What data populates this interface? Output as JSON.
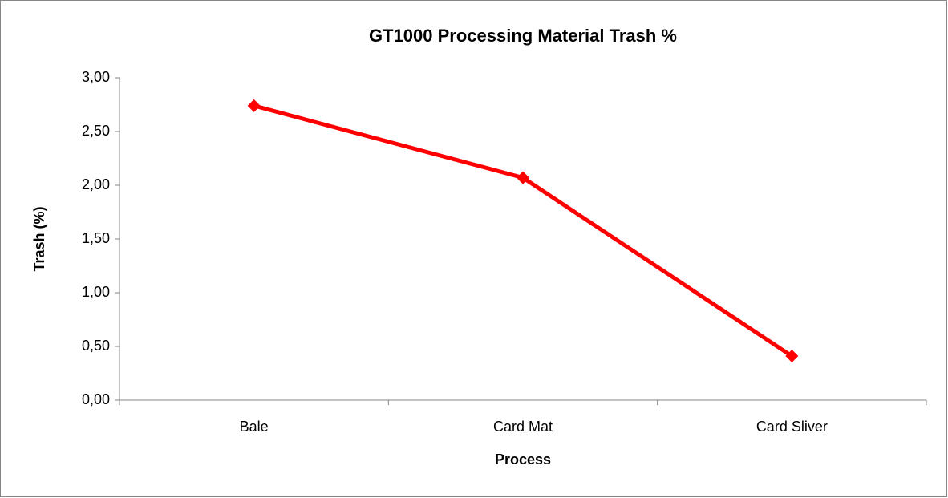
{
  "chart_data": {
    "type": "line",
    "title": "GT1000 Processing Material Trash %",
    "xlabel": "Process",
    "ylabel": "Trash (%)",
    "categories": [
      "Bale",
      "Card Mat",
      "Card Sliver"
    ],
    "series": [
      {
        "name": "Trash",
        "color": "#ff0000",
        "values": [
          2.74,
          2.07,
          0.41
        ]
      }
    ],
    "ylim": [
      0,
      3
    ],
    "yticks": [
      {
        "value": 0,
        "label": "0,00"
      },
      {
        "value": 0.5,
        "label": "0,50"
      },
      {
        "value": 1,
        "label": "1,00"
      },
      {
        "value": 1.5,
        "label": "1,50"
      },
      {
        "value": 2,
        "label": "2,00"
      },
      {
        "value": 2.5,
        "label": "2,50"
      },
      {
        "value": 3,
        "label": "3,00"
      }
    ],
    "grid": false,
    "legend": false
  }
}
